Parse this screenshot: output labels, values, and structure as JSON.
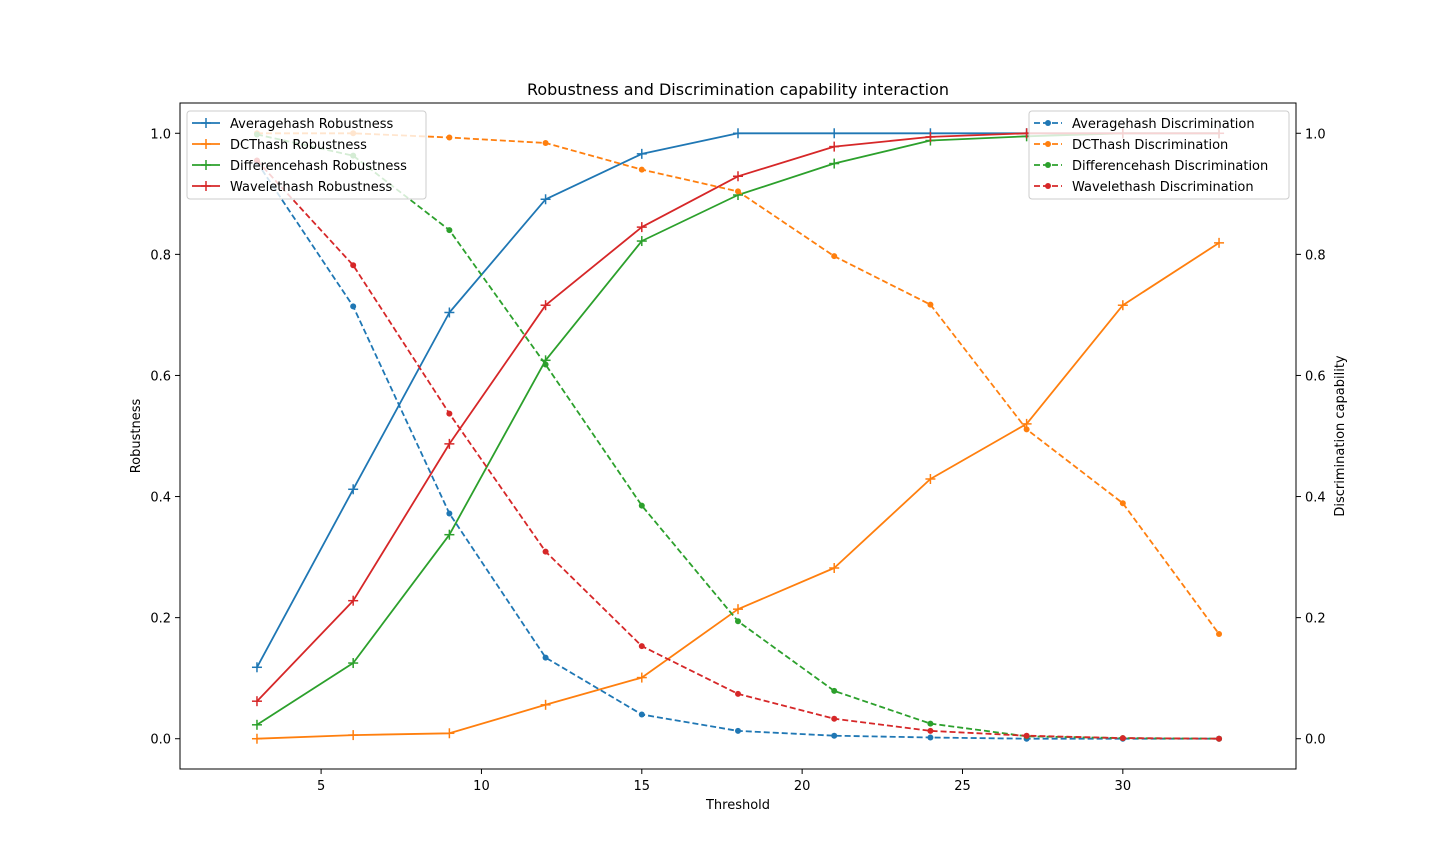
{
  "chart_data": {
    "type": "line",
    "title": "Robustness and Discrimination capability interaction",
    "xlabel": "Threshold",
    "ylabel_left": "Robustness",
    "ylabel_right": "Discrimination capability",
    "x": [
      3,
      6,
      9,
      12,
      15,
      18,
      21,
      24,
      27,
      30,
      33
    ],
    "xlim": [
      0.6,
      35.4
    ],
    "ylim": [
      -0.05,
      1.05
    ],
    "x_ticks": [
      5,
      10,
      15,
      20,
      25,
      30
    ],
    "y_ticks": [
      0.0,
      0.2,
      0.4,
      0.6,
      0.8,
      1.0
    ],
    "grid": false,
    "legend_left_placement": "top-left",
    "legend_right_placement": "top-right",
    "robustness_series": [
      {
        "name": "Averagehash Robustness",
        "color": "#1f77b4",
        "style": "solid",
        "marker": "plus",
        "values": [
          0.118,
          0.412,
          0.704,
          0.891,
          0.966,
          1.0,
          1.0,
          1.0,
          1.0,
          1.0,
          1.0
        ]
      },
      {
        "name": "DCThash Robustness",
        "color": "#ff7f0e",
        "style": "solid",
        "marker": "plus",
        "values": [
          0.0,
          0.006,
          0.009,
          0.056,
          0.101,
          0.214,
          0.282,
          0.429,
          0.52,
          0.716,
          0.819
        ]
      },
      {
        "name": "Differencehash Robustness",
        "color": "#2ca02c",
        "style": "solid",
        "marker": "plus",
        "values": [
          0.023,
          0.125,
          0.337,
          0.625,
          0.822,
          0.898,
          0.95,
          0.988,
          0.995,
          1.0,
          1.0
        ]
      },
      {
        "name": "Wavelethash Robustness",
        "color": "#d62728",
        "style": "solid",
        "marker": "plus",
        "values": [
          0.062,
          0.228,
          0.487,
          0.716,
          0.845,
          0.929,
          0.978,
          0.994,
          1.0,
          1.0,
          1.0
        ]
      }
    ],
    "discrimination_series": [
      {
        "name": "Averagehash Discrimination",
        "color": "#1f77b4",
        "style": "dashed",
        "marker": "dot",
        "values": [
          0.952,
          0.714,
          0.372,
          0.134,
          0.04,
          0.013,
          0.005,
          0.002,
          0.0,
          0.0,
          0.0
        ]
      },
      {
        "name": "DCThash Discrimination",
        "color": "#ff7f0e",
        "style": "dashed",
        "marker": "dot",
        "values": [
          1.0,
          1.0,
          0.993,
          0.984,
          0.94,
          0.904,
          0.797,
          0.717,
          0.511,
          0.389,
          0.173
        ]
      },
      {
        "name": "Differencehash Discrimination",
        "color": "#2ca02c",
        "style": "dashed",
        "marker": "dot",
        "values": [
          0.998,
          0.963,
          0.84,
          0.618,
          0.385,
          0.194,
          0.079,
          0.025,
          0.004,
          0.001,
          0.0
        ]
      },
      {
        "name": "Wavelethash Discrimination",
        "color": "#d62728",
        "style": "dashed",
        "marker": "dot",
        "values": [
          0.955,
          0.782,
          0.537,
          0.309,
          0.153,
          0.074,
          0.033,
          0.013,
          0.005,
          0.001,
          0.0
        ]
      }
    ]
  }
}
